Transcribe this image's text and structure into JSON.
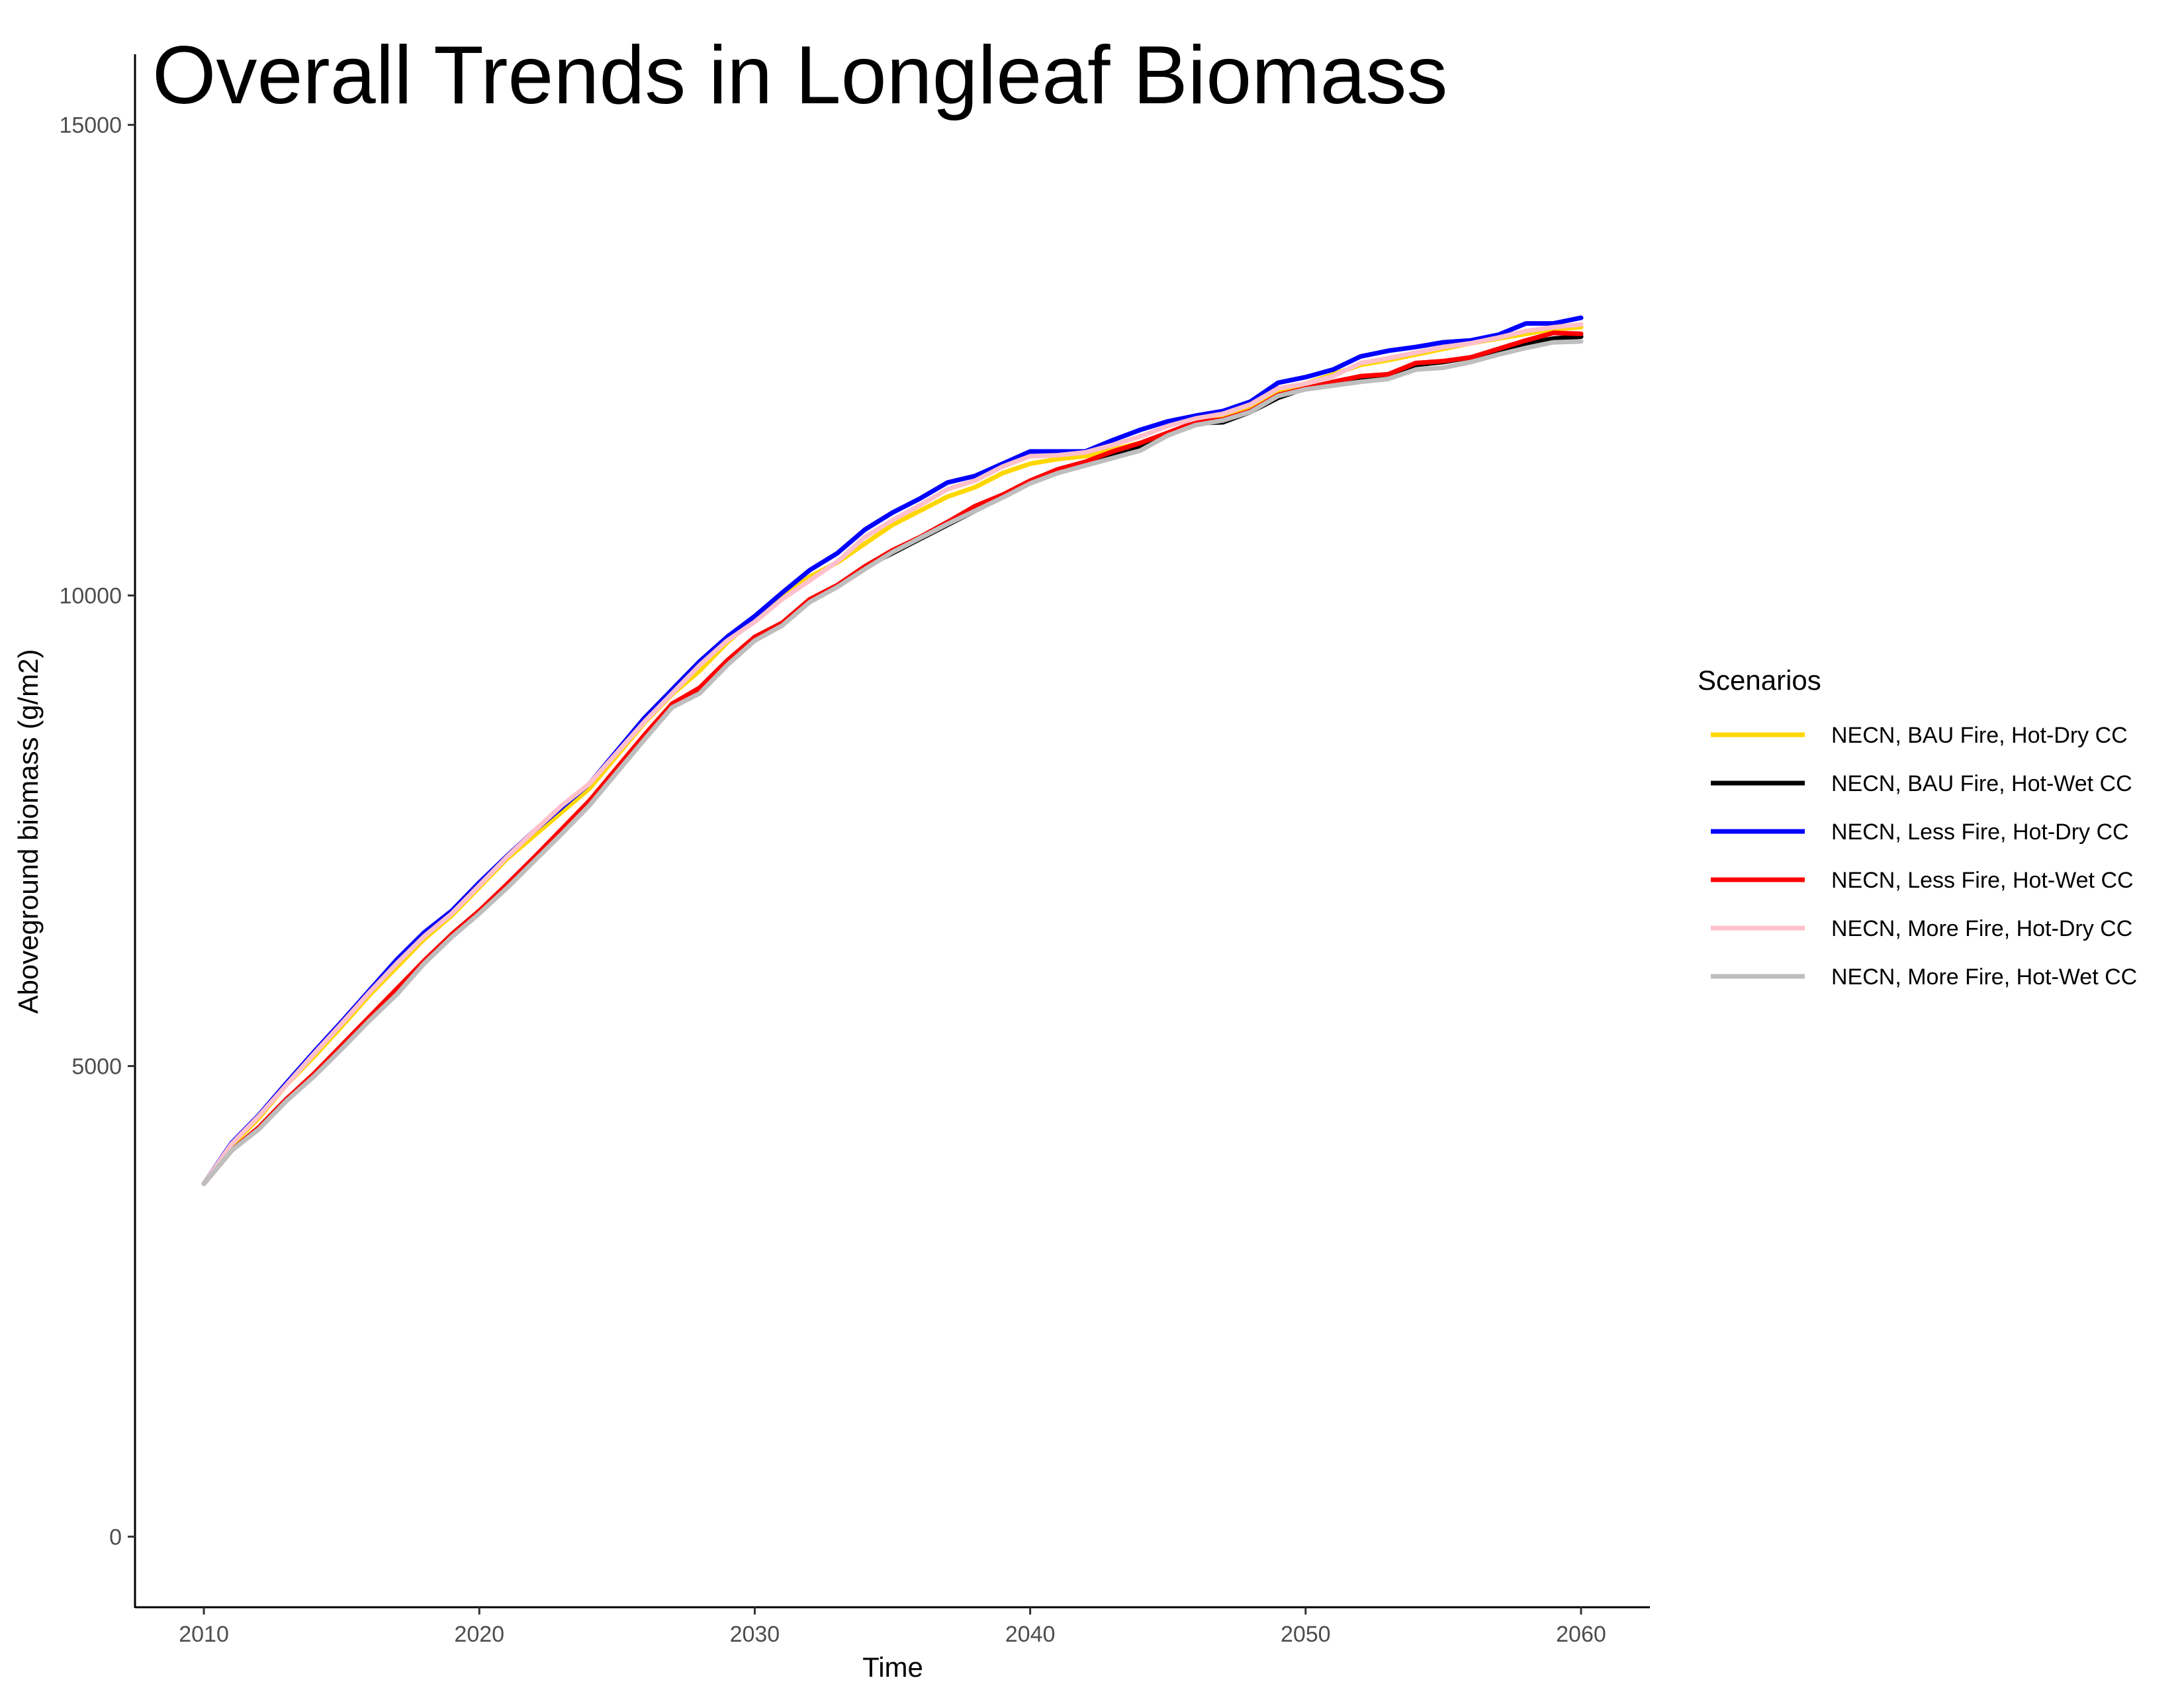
{
  "chart_data": {
    "type": "line",
    "title": "Overall Trends in Longleaf Biomass",
    "xlabel": "Time",
    "ylabel": "Aboveground biomass (g/m2)",
    "xlim": [
      2007.5,
      2062.5
    ],
    "ylim": [
      -750,
      15750
    ],
    "x_ticks": [
      2010,
      2020,
      2030,
      2040,
      2050,
      2060
    ],
    "y_ticks": [
      0,
      5000,
      10000,
      15000
    ],
    "grid": false,
    "legend": {
      "title": "Scenarios",
      "position": "right"
    },
    "x": [
      2010,
      2011,
      2012,
      2013,
      2014,
      2015,
      2016,
      2017,
      2018,
      2019,
      2020,
      2021,
      2022,
      2023,
      2024,
      2025,
      2026,
      2027,
      2028,
      2029,
      2030,
      2031,
      2032,
      2033,
      2034,
      2035,
      2036,
      2037,
      2038,
      2039,
      2040,
      2041,
      2042,
      2043,
      2044,
      2045,
      2046,
      2047,
      2048,
      2049,
      2050,
      2051,
      2052,
      2053,
      2054,
      2055,
      2056,
      2057,
      2058,
      2059,
      2060
    ],
    "series": [
      {
        "name": "NECN, BAU Fire, Hot-Dry CC",
        "color": "#FFD700",
        "values": [
          3750,
          4150,
          4450,
          4800,
          5100,
          5420,
          5750,
          6050,
          6350,
          6600,
          6900,
          7200,
          7450,
          7700,
          7950,
          8300,
          8650,
          8950,
          9200,
          9500,
          9750,
          10000,
          10200,
          10350,
          10550,
          10750,
          10900,
          11050,
          11150,
          11300,
          11400,
          11450,
          11480,
          11550,
          11620,
          11720,
          11830,
          11900,
          12000,
          12150,
          12250,
          12350,
          12450,
          12500,
          12560,
          12620,
          12680,
          12730,
          12780,
          12830,
          12850
        ]
      },
      {
        "name": "NECN, BAU Fire, Hot-Wet CC",
        "color": "#000000",
        "values": [
          3750,
          4100,
          4350,
          4650,
          4900,
          5200,
          5500,
          5800,
          6100,
          6400,
          6650,
          6900,
          7200,
          7500,
          7800,
          8150,
          8500,
          8850,
          9000,
          9300,
          9550,
          9700,
          9950,
          10100,
          10300,
          10450,
          10600,
          10750,
          10900,
          11050,
          11200,
          11330,
          11400,
          11480,
          11570,
          11720,
          11830,
          11840,
          11950,
          12100,
          12200,
          12250,
          12300,
          12350,
          12450,
          12480,
          12530,
          12600,
          12680,
          12730,
          12750
        ]
      },
      {
        "name": "NECN, Less Fire, Hot-Dry CC",
        "color": "#0000FF",
        "values": [
          3750,
          4180,
          4480,
          4820,
          5150,
          5470,
          5800,
          6130,
          6420,
          6650,
          6950,
          7230,
          7500,
          7750,
          8000,
          8350,
          8700,
          9000,
          9300,
          9560,
          9780,
          10030,
          10270,
          10450,
          10700,
          10880,
          11030,
          11200,
          11270,
          11400,
          11530,
          11530,
          11530,
          11650,
          11760,
          11850,
          11910,
          11960,
          12060,
          12260,
          12320,
          12400,
          12540,
          12600,
          12640,
          12690,
          12710,
          12770,
          12890,
          12890,
          12950
        ]
      },
      {
        "name": "NECN, Less Fire, Hot-Wet CC",
        "color": "#FF0000",
        "values": [
          3750,
          4100,
          4350,
          4650,
          4920,
          5220,
          5520,
          5820,
          6120,
          6400,
          6650,
          6930,
          7220,
          7520,
          7820,
          8170,
          8520,
          8850,
          9020,
          9310,
          9560,
          9710,
          9960,
          10110,
          10310,
          10480,
          10620,
          10780,
          10950,
          11070,
          11220,
          11340,
          11420,
          11530,
          11620,
          11730,
          11840,
          11870,
          11960,
          12130,
          12200,
          12270,
          12330,
          12350,
          12470,
          12490,
          12530,
          12620,
          12710,
          12790,
          12780
        ]
      },
      {
        "name": "NECN, More Fire, Hot-Dry CC",
        "color": "#FFC0CB",
        "values": [
          3750,
          4170,
          4470,
          4800,
          5130,
          5450,
          5780,
          6090,
          6380,
          6620,
          6920,
          7220,
          7500,
          7770,
          8000,
          8330,
          8660,
          8960,
          9260,
          9520,
          9720,
          9960,
          10160,
          10360,
          10620,
          10800,
          10960,
          11130,
          11220,
          11370,
          11480,
          11490,
          11520,
          11600,
          11690,
          11800,
          11880,
          11930,
          12030,
          12200,
          12250,
          12330,
          12470,
          12520,
          12580,
          12640,
          12680,
          12740,
          12810,
          12850,
          12880
        ]
      },
      {
        "name": "NECN, More Fire, Hot-Wet CC",
        "color": "#BEBEBE",
        "values": [
          3750,
          4100,
          4330,
          4630,
          4890,
          5180,
          5480,
          5760,
          6090,
          6370,
          6620,
          6890,
          7180,
          7470,
          7770,
          8120,
          8470,
          8810,
          8960,
          9260,
          9520,
          9680,
          9930,
          10090,
          10280,
          10460,
          10610,
          10760,
          10900,
          11040,
          11190,
          11300,
          11380,
          11460,
          11540,
          11700,
          11810,
          11860,
          11950,
          12120,
          12190,
          12230,
          12270,
          12300,
          12400,
          12420,
          12480,
          12560,
          12630,
          12690,
          12700
        ]
      }
    ]
  }
}
